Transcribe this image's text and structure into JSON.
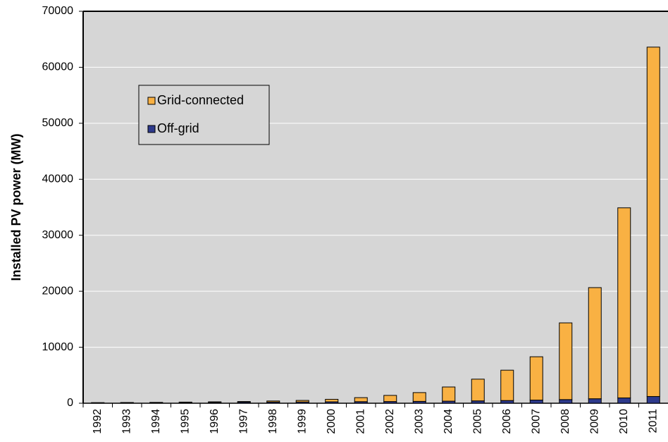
{
  "chart_data": {
    "type": "stacked_bar",
    "y_label": "Installed PV power (MW)",
    "categories": [
      "1992",
      "1993",
      "1994",
      "1995",
      "1996",
      "1997",
      "1998",
      "1999",
      "2000",
      "2001",
      "2002",
      "2003",
      "2004",
      "2005",
      "2006",
      "2007",
      "2008",
      "2009",
      "2010",
      "2011"
    ],
    "series": [
      {
        "name": "Grid-connected",
        "color": "#f9b143",
        "values": [
          20,
          30,
          30,
          60,
          90,
          120,
          200,
          280,
          450,
          720,
          1100,
          1570,
          2530,
          3880,
          5420,
          7740,
          13700,
          19850,
          33950,
          62400
        ]
      },
      {
        "name": "Off-grid",
        "color": "#2e3a8c",
        "values": [
          80,
          100,
          120,
          140,
          160,
          180,
          200,
          220,
          250,
          280,
          300,
          330,
          370,
          420,
          480,
          560,
          650,
          800,
          950,
          1200
        ]
      }
    ],
    "ylim": [
      0,
      70000
    ],
    "yticks": [
      0,
      10000,
      20000,
      30000,
      40000,
      50000,
      60000,
      70000
    ],
    "grid": true
  }
}
